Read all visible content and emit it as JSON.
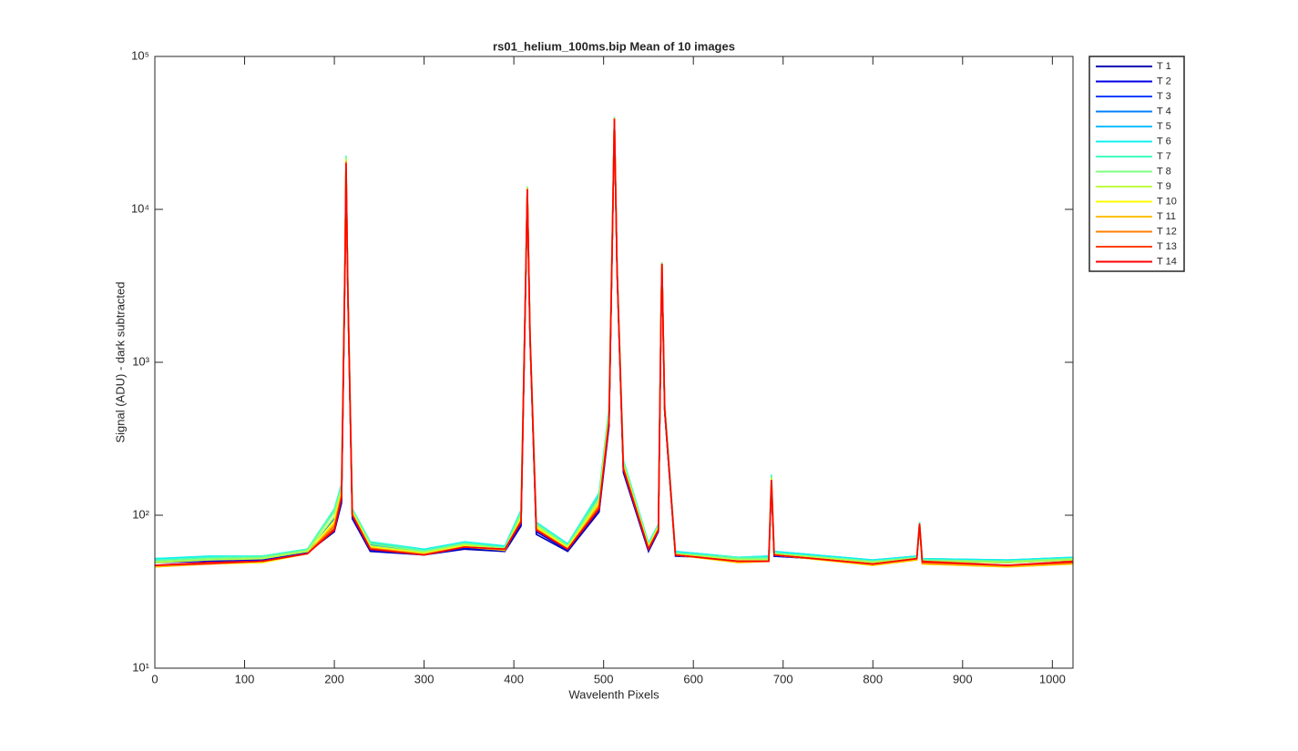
{
  "chart_data": {
    "type": "line",
    "title": "rs01_helium_100ms.bip  Mean of 10 images",
    "xlabel": "Wavelenth Pixels",
    "ylabel": "Signal (ADU) - dark subtracted",
    "yscale": "log",
    "xlim": [
      0,
      1023
    ],
    "ylim": [
      10,
      100000
    ],
    "xticks": [
      0,
      100,
      200,
      300,
      400,
      500,
      600,
      700,
      800,
      900,
      1000
    ],
    "yticks": [
      {
        "value": 10,
        "label": "10¹"
      },
      {
        "value": 100,
        "label": "10²"
      },
      {
        "value": 1000,
        "label": "10³"
      },
      {
        "value": 10000,
        "label": "10⁴"
      },
      {
        "value": 100000,
        "label": "10⁵"
      }
    ],
    "legend": "outside-right",
    "x": [
      0,
      60,
      120,
      170,
      200,
      208,
      212,
      213,
      215,
      220,
      240,
      300,
      345,
      390,
      408,
      413,
      415,
      418,
      425,
      460,
      495,
      506,
      510,
      512,
      515,
      522,
      550,
      561,
      564,
      565,
      568,
      580,
      650,
      684,
      687,
      690,
      800,
      849,
      852,
      855,
      950,
      1023
    ],
    "series": [
      {
        "name": "T 1",
        "color": "#0000b4",
        "values": [
          50,
          51,
          52,
          57,
          78,
          120,
          4800,
          19500,
          2900,
          95,
          58,
          55,
          60,
          58,
          85,
          2900,
          13000,
          1450,
          75,
          58,
          105,
          380,
          7800,
          38000,
          3900,
          190,
          58,
          78,
          1950,
          4300,
          480,
          54,
          52,
          51,
          160,
          54,
          50,
          52,
          85,
          51,
          50,
          52
        ]
      },
      {
        "name": "T 2",
        "color": "#0000e6",
        "values": [
          49,
          50,
          51,
          57,
          80,
          125,
          4900,
          19800,
          2950,
          98,
          59,
          55,
          61,
          59,
          88,
          2950,
          13200,
          1480,
          78,
          59,
          108,
          390,
          7900,
          38500,
          3950,
          195,
          59,
          79,
          1980,
          4350,
          490,
          55,
          51,
          51,
          165,
          54,
          49,
          52,
          86,
          50,
          49,
          51
        ]
      },
      {
        "name": "T 3",
        "color": "#0040ff",
        "values": [
          50,
          52,
          52,
          58,
          85,
          135,
          5100,
          20500,
          3050,
          102,
          62,
          57,
          63,
          60,
          95,
          3050,
          13600,
          1520,
          82,
          61,
          115,
          420,
          8100,
          39200,
          4050,
          205,
          61,
          82,
          2020,
          4420,
          510,
          56,
          52,
          52,
          172,
          56,
          50,
          53,
          87,
          51,
          49,
          52
        ]
      },
      {
        "name": "T 4",
        "color": "#0080ff",
        "values": [
          51,
          52,
          53,
          59,
          95,
          145,
          5200,
          21000,
          3100,
          105,
          64,
          58,
          64,
          61,
          100,
          3100,
          13800,
          1550,
          85,
          62,
          125,
          450,
          8300,
          39500,
          4100,
          215,
          63,
          84,
          2050,
          4450,
          520,
          57,
          52,
          53,
          175,
          57,
          50,
          53,
          88,
          51,
          50,
          52
        ]
      },
      {
        "name": "T 5",
        "color": "#00bfff",
        "values": [
          52,
          53,
          54,
          60,
          105,
          155,
          5300,
          21500,
          3150,
          108,
          66,
          59,
          66,
          62,
          105,
          3150,
          13900,
          1580,
          88,
          64,
          135,
          480,
          8500,
          39800,
          4150,
          225,
          65,
          86,
          2080,
          4480,
          530,
          58,
          53,
          54,
          178,
          58,
          51,
          54,
          89,
          52,
          51,
          53
        ]
      },
      {
        "name": "T 6",
        "color": "#10f0f0",
        "values": [
          52,
          54,
          54,
          60,
          110,
          160,
          5400,
          21800,
          3200,
          110,
          67,
          60,
          67,
          63,
          108,
          3180,
          14000,
          1600,
          90,
          65,
          140,
          500,
          8600,
          40000,
          4200,
          230,
          66,
          87,
          2100,
          4500,
          540,
          58,
          53,
          54,
          180,
          58,
          51,
          54,
          90,
          52,
          51,
          53
        ]
      },
      {
        "name": "T 7",
        "color": "#40ffc0",
        "values": [
          51,
          53,
          54,
          60,
          110,
          158,
          5500,
          22500,
          3250,
          110,
          67,
          59,
          66,
          62,
          106,
          3200,
          14100,
          1610,
          89,
          64,
          138,
          495,
          8700,
          40200,
          4200,
          228,
          65,
          86,
          2090,
          4490,
          535,
          57,
          53,
          53,
          185,
          57,
          50,
          53,
          90,
          51,
          50,
          52
        ]
      },
      {
        "name": "T 8",
        "color": "#80ff80",
        "values": [
          50,
          52,
          53,
          59,
          105,
          150,
          5400,
          22000,
          3200,
          107,
          65,
          58,
          65,
          61,
          102,
          3150,
          14000,
          1590,
          87,
          63,
          130,
          470,
          8500,
          39900,
          4150,
          220,
          64,
          85,
          2070,
          4470,
          525,
          56,
          52,
          52,
          178,
          56,
          50,
          53,
          89,
          51,
          50,
          52
        ]
      },
      {
        "name": "T 9",
        "color": "#c0ff40",
        "values": [
          49,
          51,
          52,
          58,
          98,
          145,
          5300,
          21500,
          3150,
          105,
          63,
          57,
          64,
          60,
          98,
          3100,
          13900,
          1570,
          85,
          62,
          125,
          450,
          8400,
          39700,
          4100,
          215,
          63,
          84,
          2050,
          4450,
          520,
          56,
          51,
          51,
          175,
          56,
          49,
          52,
          88,
          50,
          49,
          51
        ]
      },
      {
        "name": "T 10",
        "color": "#ffff00",
        "values": [
          46,
          48,
          49,
          56,
          92,
          140,
          5200,
          21000,
          3100,
          103,
          62,
          56,
          63,
          59,
          95,
          3080,
          13800,
          1550,
          83,
          61,
          120,
          440,
          8300,
          39500,
          4080,
          210,
          62,
          82,
          2030,
          4430,
          515,
          55,
          49,
          50,
          172,
          55,
          47,
          51,
          87,
          48,
          46,
          48
        ]
      },
      {
        "name": "T 11",
        "color": "#ffc000",
        "values": [
          46,
          48,
          50,
          56,
          88,
          138,
          5100,
          20800,
          3080,
          102,
          61,
          56,
          62,
          59,
          93,
          3050,
          13700,
          1540,
          82,
          60,
          118,
          430,
          8200,
          39400,
          4060,
          208,
          61,
          81,
          2020,
          4420,
          510,
          55,
          49,
          50,
          170,
          55,
          47,
          51,
          87,
          48,
          46,
          48
        ]
      },
      {
        "name": "T 12",
        "color": "#ff8000",
        "values": [
          47,
          49,
          50,
          56,
          85,
          135,
          5050,
          20500,
          3050,
          101,
          61,
          55,
          62,
          60,
          92,
          3030,
          13650,
          1520,
          81,
          60,
          115,
          420,
          8100,
          39300,
          4040,
          205,
          61,
          81,
          2010,
          4410,
          505,
          55,
          50,
          50,
          170,
          55,
          48,
          52,
          88,
          49,
          47,
          49
        ]
      },
      {
        "name": "T 13",
        "color": "#ff4000",
        "values": [
          47,
          48,
          50,
          56,
          82,
          132,
          5020,
          20200,
          3020,
          100,
          60,
          55,
          62,
          60,
          91,
          3010,
          13550,
          1510,
          80,
          60,
          112,
          410,
          8050,
          39100,
          4020,
          202,
          60,
          80,
          2005,
          4405,
          502,
          55,
          50,
          50,
          170,
          55,
          48,
          52,
          88,
          49,
          47,
          49
        ]
      },
      {
        "name": "T 14",
        "color": "#ff0000",
        "values": [
          47,
          49,
          50,
          56,
          80,
          130,
          5000,
          20000,
          3000,
          100,
          60,
          55,
          62,
          60,
          90,
          3000,
          13500,
          1500,
          80,
          60,
          110,
          400,
          8000,
          39000,
          4000,
          200,
          60,
          80,
          2000,
          4400,
          500,
          55,
          50,
          50,
          170,
          55,
          48,
          52,
          88,
          50,
          47,
          50
        ]
      }
    ]
  }
}
